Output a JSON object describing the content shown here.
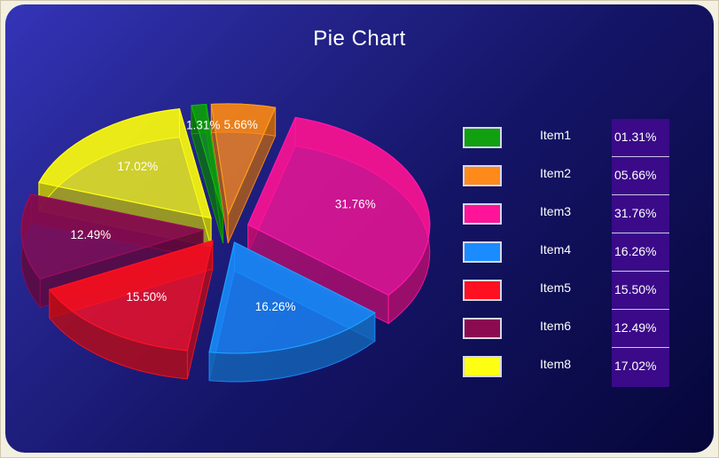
{
  "chart_data": {
    "type": "pie",
    "title": "Pie Chart",
    "legend_position": "right",
    "slices": [
      {
        "name": "Item1",
        "value": 1.31,
        "label": "1.31%",
        "legend_value": "01.31%",
        "color": "#10a010"
      },
      {
        "name": "Item2",
        "value": 5.66,
        "label": "5.66%",
        "legend_value": "05.66%",
        "color": "#ff8a1a"
      },
      {
        "name": "Item3",
        "value": 31.76,
        "label": "31.76%",
        "legend_value": "31.76%",
        "color": "#ff1499"
      },
      {
        "name": "Item4",
        "value": 16.26,
        "label": "16.26%",
        "legend_value": "16.26%",
        "color": "#1a8cff"
      },
      {
        "name": "Item5",
        "value": 15.5,
        "label": "15.50%",
        "legend_value": "15.50%",
        "color": "#ff1020"
      },
      {
        "name": "Item6",
        "value": 12.49,
        "label": "12.49%",
        "legend_value": "12.49%",
        "color": "#8a0b50"
      },
      {
        "name": "Item8",
        "value": 17.02,
        "label": "17.02%",
        "legend_value": "17.02%",
        "color": "#ffff14"
      }
    ]
  }
}
